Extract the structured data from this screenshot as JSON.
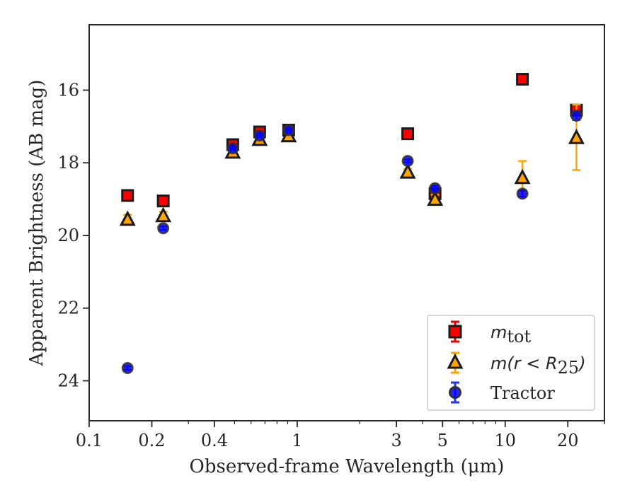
{
  "chart_data": {
    "type": "scatter",
    "xlabel": "Observed-frame Wavelength (μm)",
    "ylabel": "Apparent Brightness (AB mag)",
    "xscale": "log",
    "yaxis_inverted": true,
    "xlim": [
      0.1,
      30
    ],
    "ylim": [
      25.1,
      14.2
    ],
    "x_ticks": [
      {
        "value": 0.1,
        "label": "0.1"
      },
      {
        "value": 0.2,
        "label": "0.2"
      },
      {
        "value": 0.4,
        "label": "0.4"
      },
      {
        "value": 1,
        "label": "1"
      },
      {
        "value": 3,
        "label": "3"
      },
      {
        "value": 5,
        "label": "5"
      },
      {
        "value": 10,
        "label": "10"
      },
      {
        "value": 20,
        "label": "20"
      }
    ],
    "y_ticks": [
      {
        "value": 16,
        "label": "16"
      },
      {
        "value": 18,
        "label": "18"
      },
      {
        "value": 20,
        "label": "20"
      },
      {
        "value": 22,
        "label": "22"
      },
      {
        "value": 24,
        "label": "24"
      }
    ],
    "grid": false,
    "legend_position": "lower-right",
    "series": [
      {
        "name": "m_tot",
        "marker": "square",
        "face_color": "#ff0000",
        "edge_color": "#1a1a1a",
        "errorbar_color": "#e60000",
        "x": [
          0.153,
          0.227,
          0.49,
          0.66,
          0.91,
          3.4,
          4.6,
          12.1,
          22.0
        ],
        "y": [
          18.9,
          19.05,
          17.5,
          17.15,
          17.1,
          17.2,
          18.85,
          15.7,
          16.55
        ],
        "yerr": [
          0.08,
          0.06,
          0.06,
          0.05,
          0.04,
          0.05,
          0.1,
          0.05,
          0.12
        ]
      },
      {
        "name": "m(r < R_25)",
        "marker": "triangle",
        "face_color": "#ffa500",
        "edge_color": "#1a1a1a",
        "errorbar_color": "#ffa500",
        "x": [
          0.153,
          0.227,
          0.49,
          0.66,
          0.91,
          3.4,
          4.6,
          12.1,
          22.0
        ],
        "y": [
          19.55,
          19.45,
          17.7,
          17.35,
          17.25,
          18.25,
          19.0,
          18.4,
          17.3
        ],
        "yerr": [
          0.12,
          0.1,
          0.06,
          0.05,
          0.05,
          0.08,
          0.12,
          0.45,
          0.9
        ]
      },
      {
        "name": "Tractor",
        "marker": "circle",
        "face_color": "#0000ff",
        "edge_color": "#303030",
        "errorbar_color": "#2233ee",
        "x": [
          0.153,
          0.227,
          0.49,
          0.66,
          0.91,
          3.4,
          4.6,
          12.1,
          22.0
        ],
        "y": [
          23.65,
          19.8,
          17.6,
          17.25,
          17.1,
          17.95,
          18.7,
          18.85,
          16.7
        ],
        "yerr": [
          0.05,
          0.05,
          0.04,
          0.04,
          0.04,
          0.04,
          0.06,
          0.08,
          0.12
        ]
      }
    ]
  },
  "legend": {
    "m_tot_base": "m",
    "m_tot_sub": "tot",
    "m_r_prefix": "m(r < R",
    "m_r_sub": "25",
    "m_r_suffix": ")",
    "tractor": "Tractor"
  }
}
